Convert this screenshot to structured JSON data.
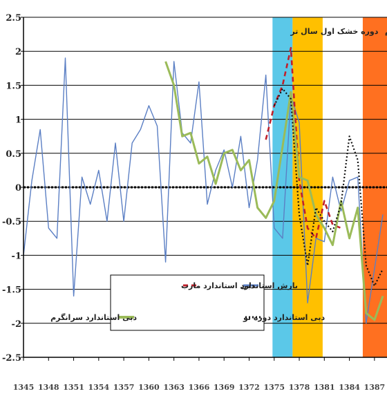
{
  "chart_data": {
    "type": "line",
    "x_ticks": [
      "1345",
      "1348",
      "1351",
      "1354",
      "1357",
      "1360",
      "1363",
      "1366",
      "1369",
      "1372",
      "1375",
      "1378",
      "1381",
      "1384",
      "1387"
    ],
    "y_ticks": [
      "2.5",
      "2",
      "1.5",
      "1",
      "0.5",
      "0",
      "-0.5",
      "-1",
      "-1.5",
      "-2",
      "-2.5"
    ],
    "ylim": [
      -2.5,
      2.5
    ],
    "xlim": [
      1345,
      1388.5
    ],
    "grid": true,
    "legend_position": "bottom-center",
    "periods": [
      {
        "label": "سال تر",
        "from": 1374.8,
        "to": 1377.2,
        "color": "#5bc8e8"
      },
      {
        "label": "دوره خشک اول",
        "from": 1377.2,
        "to": 1380.8,
        "color": "#ffc000"
      },
      {
        "label": "دوره خشک دوم",
        "from": 1385.6,
        "to": 1389,
        "color": "#ff7020"
      }
    ],
    "series": [
      {
        "name": "بارش استاندارد",
        "color": "#5b7fc4",
        "style": "solid",
        "x": [
          1345,
          1346,
          1347,
          1348,
          1349,
          1350,
          1351,
          1352,
          1353,
          1354,
          1355,
          1356,
          1357,
          1358,
          1359,
          1360,
          1361,
          1362,
          1363,
          1364,
          1365,
          1366,
          1367,
          1368,
          1369,
          1370,
          1371,
          1372,
          1373,
          1374,
          1375,
          1376,
          1377,
          1378,
          1379,
          1380,
          1381,
          1382,
          1383,
          1384,
          1385,
          1386,
          1387,
          1388
        ],
        "y": [
          -1.0,
          0.1,
          0.85,
          -0.6,
          -0.75,
          1.9,
          -1.6,
          0.15,
          -0.25,
          0.25,
          -0.5,
          0.65,
          -0.5,
          0.65,
          0.85,
          1.2,
          0.9,
          -1.1,
          1.85,
          0.8,
          0.65,
          1.55,
          -0.25,
          0.25,
          0.55,
          0.0,
          0.75,
          -0.3,
          0.4,
          1.65,
          -0.6,
          -0.75,
          1.35,
          0.95,
          -1.7,
          -0.75,
          -0.8,
          0.15,
          -0.35,
          0.1,
          0.15,
          -2.0,
          -1.2,
          -0.4
        ]
      },
      {
        "name": "دبی استاندارد مارب",
        "color": "#c0202a",
        "style": "dashed",
        "x": [
          1374,
          1375,
          1376,
          1377,
          1378,
          1379,
          1380,
          1381,
          1382,
          1383
        ],
        "y": [
          0.7,
          1.2,
          1.5,
          2.05,
          0.1,
          -0.6,
          -0.75,
          -0.2,
          -0.55,
          -0.6
        ]
      },
      {
        "name": "دبی استاندارد سرانگرم",
        "color": "#9bbb59",
        "style": "solid",
        "x": [
          1362,
          1363,
          1364,
          1365,
          1366,
          1367,
          1368,
          1369,
          1370,
          1371,
          1372,
          1373,
          1374,
          1375,
          1376,
          1377,
          1378,
          1379,
          1380,
          1381,
          1382,
          1383,
          1384,
          1385,
          1386,
          1387,
          1388
        ],
        "y": [
          1.85,
          1.5,
          0.75,
          0.8,
          0.35,
          0.45,
          0.05,
          0.5,
          0.55,
          0.25,
          0.4,
          -0.3,
          -0.45,
          -0.2,
          0.6,
          1.4,
          0.15,
          0.1,
          -0.4,
          -0.6,
          -0.85,
          -0.2,
          -0.75,
          -0.3,
          -1.85,
          -1.95,
          -1.6
        ]
      },
      {
        "name": "دبی استاندارد دوره تو",
        "color": "#111111",
        "style": "dotted",
        "x": [
          1375,
          1376,
          1377,
          1378,
          1379,
          1380,
          1381,
          1382,
          1383,
          1384,
          1385,
          1386,
          1387,
          1388
        ],
        "y": [
          1.2,
          1.45,
          1.3,
          -0.4,
          -1.15,
          -0.3,
          -0.5,
          -0.65,
          -0.25,
          0.75,
          0.4,
          -1.15,
          -1.45,
          -1.2
        ]
      }
    ]
  }
}
